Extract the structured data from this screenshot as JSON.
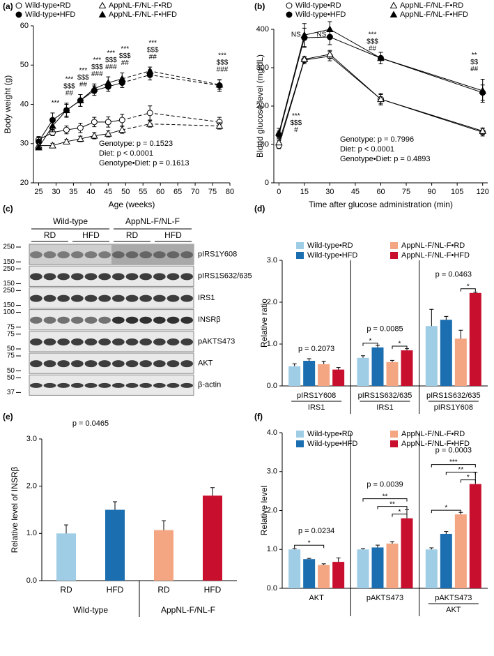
{
  "chart_data": [
    {
      "type": "line",
      "panel_label": "(a)",
      "xlabel": "Age (weeks)",
      "ylabel": "Body weight (g)",
      "xlim": [
        23.5,
        80
      ],
      "ylim": [
        20,
        60
      ],
      "xticks": [
        25,
        30,
        35,
        40,
        45,
        50,
        55,
        60,
        65,
        70,
        75,
        80
      ],
      "yticks": [
        20,
        30,
        40,
        50,
        60
      ],
      "dashed_from": 49,
      "x": [
        25,
        29,
        33,
        37,
        41,
        45,
        49,
        57,
        77
      ],
      "series": [
        {
          "name": "Wild-type•RD",
          "color": "#000000",
          "marker": "circle",
          "filled": false,
          "values": [
            31,
            32.8,
            33.5,
            34,
            35.5,
            35.5,
            36,
            37.8,
            35.5
          ],
          "errors": [
            0.8,
            0.8,
            1,
            1.2,
            1.2,
            1.3,
            1.5,
            1.8,
            1.2
          ]
        },
        {
          "name": "Wild-type•HFD",
          "color": "#000000",
          "marker": "circle",
          "filled": true,
          "values": [
            30.5,
            36,
            38.5,
            41,
            43.5,
            44.5,
            45.5,
            47.5,
            44.8
          ],
          "errors": [
            1,
            1.8,
            1.8,
            1.5,
            1.2,
            1.2,
            1.2,
            1.3,
            1.5
          ]
        },
        {
          "name": "AppNL-F/NL-F•RD",
          "color": "#000000",
          "marker": "triangle",
          "filled": false,
          "values": [
            29.5,
            29.5,
            30.5,
            31.2,
            32,
            32.5,
            33.5,
            35,
            34.5
          ],
          "errors": [
            0.5,
            0.6,
            0.6,
            0.7,
            0.8,
            0.8,
            0.9,
            0.8,
            0.8
          ]
        },
        {
          "name": "AppNL-F/NL-F•HFD",
          "color": "#000000",
          "marker": "triangle",
          "filled": true,
          "values": [
            29,
            34.5,
            38.5,
            41,
            44,
            45.5,
            46.5,
            48.5,
            45
          ],
          "errors": [
            0.6,
            1.5,
            1.5,
            1.5,
            1.2,
            1.5,
            1.5,
            1,
            1.2
          ]
        }
      ],
      "annotations": [
        {
          "x": 29,
          "lines": [
            "***"
          ]
        },
        {
          "x": 33,
          "lines": [
            "***",
            "$$$",
            "##"
          ]
        },
        {
          "x": 37,
          "lines": [
            "***",
            "$$$",
            "##"
          ]
        },
        {
          "x": 41,
          "lines": [
            "***",
            "$$$",
            "###"
          ]
        },
        {
          "x": 45,
          "lines": [
            "***",
            "$$$",
            "###"
          ]
        },
        {
          "x": 49,
          "lines": [
            "***",
            "$$$",
            "##"
          ]
        },
        {
          "x": 57,
          "lines": [
            "***",
            "$$$",
            "##"
          ]
        },
        {
          "x": 77,
          "lines": [
            "***",
            "$$$",
            "###"
          ]
        }
      ],
      "stats": [
        "Genotype: p = 0.1523",
        "Diet: p < 0.0001",
        "Genotype•Diet: p = 0.1613"
      ]
    },
    {
      "type": "line",
      "panel_label": "(b)",
      "xlabel": "Time after glucose administration (min)",
      "ylabel": "Blood glucose level (mg/dL)",
      "xlim": [
        -3,
        123
      ],
      "ylim": [
        0,
        400
      ],
      "xticks": [
        0,
        15,
        30,
        45,
        60,
        75,
        90,
        105,
        120
      ],
      "yticks": [
        0,
        100,
        200,
        300,
        400
      ],
      "x": [
        0,
        15,
        30,
        60,
        120
      ],
      "series": [
        {
          "name": "Wild-type•RD",
          "color": "#000000",
          "marker": "circle",
          "filled": false,
          "values": [
            97,
            320,
            330,
            218,
            132
          ],
          "errors": [
            8,
            10,
            12,
            15,
            10
          ]
        },
        {
          "name": "Wild-type•HFD",
          "color": "#000000",
          "marker": "circle",
          "filled": true,
          "values": [
            125,
            378,
            380,
            325,
            235
          ],
          "errors": [
            10,
            25,
            20,
            15,
            20
          ]
        },
        {
          "name": "AppNL-F/NL-F•RD",
          "color": "#000000",
          "marker": "triangle",
          "filled": false,
          "values": [
            105,
            322,
            335,
            218,
            135
          ],
          "errors": [
            6,
            8,
            10,
            12,
            8
          ]
        },
        {
          "name": "AppNL-F/NL-F•HFD",
          "color": "#000000",
          "marker": "triangle",
          "filled": true,
          "values": [
            130,
            385,
            400,
            325,
            240
          ],
          "errors": [
            12,
            30,
            20,
            15,
            30
          ]
        }
      ],
      "annotations": [
        {
          "x": 15,
          "lines": [
            "NS"
          ]
        },
        {
          "x": 30,
          "lines": [
            "NS"
          ]
        },
        {
          "x": 60,
          "lines": [
            "***",
            "$$$",
            "##"
          ]
        },
        {
          "x": 120,
          "lines": [
            "**",
            "$$",
            "##"
          ]
        },
        {
          "x": 15,
          "lines": [
            "***",
            "$$$",
            "#"
          ],
          "placement": "below"
        }
      ],
      "stats": [
        "Genotype: p = 0.7996",
        "Diet: p < 0.0001",
        "Genotype•Diet: p = 0.4893"
      ]
    },
    {
      "type": "blot",
      "panel_label": "(c)",
      "genotypes": [
        "Wild-type",
        "AppNL-F/NL-F"
      ],
      "diets": [
        "RD",
        "HFD",
        "RD",
        "HFD"
      ],
      "rows": [
        {
          "label": "pIRS1Y608",
          "markers": [
            250,
            150
          ]
        },
        {
          "label": "pIRS1S632/635",
          "markers": [
            250,
            150
          ]
        },
        {
          "label": "IRS1",
          "markers": [
            250,
            150
          ]
        },
        {
          "label": "INSRβ",
          "markers": [
            100,
            75
          ]
        },
        {
          "label": "pAKTS473",
          "markers": [
            75,
            50
          ]
        },
        {
          "label": "AKT",
          "markers": [
            75,
            50
          ]
        },
        {
          "label": "β-actin",
          "markers": [
            50,
            37
          ]
        }
      ]
    },
    {
      "type": "bar",
      "panel_label": "(d)",
      "ylabel": "Relative ratio",
      "ylim": [
        0,
        3
      ],
      "yticks": [
        {
          "value": 0,
          "label": "0.0"
        },
        {
          "value": 1,
          "label": "1.0"
        },
        {
          "value": 2,
          "label": "2.0"
        },
        {
          "value": 3,
          "label": "3.0"
        }
      ],
      "categories": [
        {
          "label": "pIRS1Y608",
          "denominator": "IRS1"
        },
        {
          "label": "pIRS1S632/635",
          "denominator": "IRS1"
        },
        {
          "label": "pIRS1S632/635",
          "denominator": "pIRS1Y608"
        }
      ],
      "series": [
        {
          "name": "Wild-type•RD",
          "color": "#9fcde6",
          "values": [
            0.47,
            0.67,
            1.43
          ],
          "errors": [
            0.06,
            0.05,
            0.4
          ]
        },
        {
          "name": "Wild-type•HFD",
          "color": "#1b6fb1",
          "values": [
            0.6,
            0.92,
            1.58
          ],
          "errors": [
            0.05,
            0.05,
            0.08
          ]
        },
        {
          "name": "AppNL-F/NL-F•RD",
          "color": "#f4a582",
          "values": [
            0.52,
            0.57,
            1.13
          ],
          "errors": [
            0.07,
            0.04,
            0.2
          ]
        },
        {
          "name": "AppNL-F/NL-F•HFD",
          "color": "#c8102e",
          "values": [
            0.39,
            0.85,
            2.22
          ],
          "errors": [
            0.05,
            0.04,
            0.02
          ]
        }
      ],
      "p_values": [
        "p = 0.2073",
        "p = 0.0085",
        "p = 0.0463"
      ],
      "brackets": [
        {
          "group": 1,
          "from": 0,
          "to": 1,
          "label": "*"
        },
        {
          "group": 1,
          "from": 2,
          "to": 3,
          "label": "*"
        },
        {
          "group": 2,
          "from": 2,
          "to": 3,
          "label": "*"
        }
      ]
    },
    {
      "type": "bar_single",
      "panel_label": "(e)",
      "ylabel": "Relative level of INSRβ",
      "ylim": [
        0,
        3
      ],
      "yticks": [
        {
          "value": 0,
          "label": "0.0"
        },
        {
          "value": 1,
          "label": "1.0"
        },
        {
          "value": 2,
          "label": "2.0"
        },
        {
          "value": 3,
          "label": "3.0"
        }
      ],
      "categories": [
        "RD",
        "HFD",
        "RD",
        "HFD"
      ],
      "groups": [
        "Wild-type",
        "AppNL-F/NL-F"
      ],
      "colors": [
        "#9fcde6",
        "#1b6fb1",
        "#f4a582",
        "#c8102e"
      ],
      "values": [
        1.0,
        1.5,
        1.07,
        1.8
      ],
      "errors": [
        0.18,
        0.17,
        0.2,
        0.17
      ],
      "p_value": "p = 0.0465"
    },
    {
      "type": "bar",
      "panel_label": "(f)",
      "ylabel": "Relative level",
      "ylim": [
        0,
        4
      ],
      "yticks": [
        {
          "value": 0,
          "label": "0.0"
        },
        {
          "value": 1,
          "label": "1.0"
        },
        {
          "value": 2,
          "label": "2.0"
        },
        {
          "value": 3,
          "label": "3.0"
        },
        {
          "value": 4,
          "label": "4.0"
        }
      ],
      "categories": [
        {
          "label": "AKT"
        },
        {
          "label": "pAKTS473"
        },
        {
          "label": "pAKTS473",
          "denominator": "AKT"
        }
      ],
      "series": [
        {
          "name": "Wild-type•RD",
          "color": "#9fcde6",
          "values": [
            1.0,
            1.0,
            1.0
          ],
          "errors": [
            0.02,
            0.02,
            0.04
          ]
        },
        {
          "name": "Wild-type•HFD",
          "color": "#1b6fb1",
          "values": [
            0.75,
            1.05,
            1.4
          ],
          "errors": [
            0.02,
            0.06,
            0.06
          ]
        },
        {
          "name": "AppNL-F/NL-F•RD",
          "color": "#f4a582",
          "values": [
            0.6,
            1.15,
            1.9
          ],
          "errors": [
            0.03,
            0.05,
            0.05
          ]
        },
        {
          "name": "AppNL-F/NL-F•HFD",
          "color": "#c8102e",
          "values": [
            0.68,
            1.8,
            2.68
          ],
          "errors": [
            0.1,
            0.22,
            0.3
          ]
        }
      ],
      "p_values": [
        "p = 0.0234",
        "p = 0.0039",
        "p = 0.0003"
      ],
      "brackets": [
        {
          "group": 0,
          "from": 0,
          "to": 2,
          "label": "*"
        },
        {
          "group": 1,
          "from": 2,
          "to": 3,
          "label": "*"
        },
        {
          "group": 1,
          "from": 1,
          "to": 3,
          "label": "**"
        },
        {
          "group": 1,
          "from": 0,
          "to": 3,
          "label": "**"
        },
        {
          "group": 2,
          "from": 0,
          "to": 2,
          "label": "*"
        },
        {
          "group": 2,
          "from": 2,
          "to": 3,
          "label": "*"
        },
        {
          "group": 2,
          "from": 1,
          "to": 3,
          "label": "**"
        },
        {
          "group": 2,
          "from": 0,
          "to": 3,
          "label": "***"
        }
      ]
    }
  ]
}
